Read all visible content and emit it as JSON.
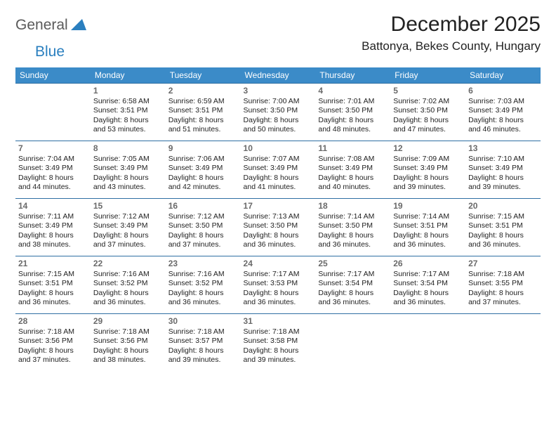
{
  "logo": {
    "general": "General",
    "blue": "Blue"
  },
  "title": "December 2025",
  "location": "Battonya, Bekes County, Hungary",
  "colors": {
    "header_bg": "#3b8bc8",
    "header_text": "#ffffff",
    "rule": "#2f6fa3",
    "logo_gray": "#5a5a5a",
    "logo_blue": "#2a7fbf",
    "daynum": "#6a6a6a",
    "text": "#222222",
    "background": "#ffffff"
  },
  "day_headers": [
    "Sunday",
    "Monday",
    "Tuesday",
    "Wednesday",
    "Thursday",
    "Friday",
    "Saturday"
  ],
  "weeks": [
    [
      null,
      {
        "n": "1",
        "sr": "6:58 AM",
        "ss": "3:51 PM",
        "dl": "8 hours and 53 minutes."
      },
      {
        "n": "2",
        "sr": "6:59 AM",
        "ss": "3:51 PM",
        "dl": "8 hours and 51 minutes."
      },
      {
        "n": "3",
        "sr": "7:00 AM",
        "ss": "3:50 PM",
        "dl": "8 hours and 50 minutes."
      },
      {
        "n": "4",
        "sr": "7:01 AM",
        "ss": "3:50 PM",
        "dl": "8 hours and 48 minutes."
      },
      {
        "n": "5",
        "sr": "7:02 AM",
        "ss": "3:50 PM",
        "dl": "8 hours and 47 minutes."
      },
      {
        "n": "6",
        "sr": "7:03 AM",
        "ss": "3:49 PM",
        "dl": "8 hours and 46 minutes."
      }
    ],
    [
      {
        "n": "7",
        "sr": "7:04 AM",
        "ss": "3:49 PM",
        "dl": "8 hours and 44 minutes."
      },
      {
        "n": "8",
        "sr": "7:05 AM",
        "ss": "3:49 PM",
        "dl": "8 hours and 43 minutes."
      },
      {
        "n": "9",
        "sr": "7:06 AM",
        "ss": "3:49 PM",
        "dl": "8 hours and 42 minutes."
      },
      {
        "n": "10",
        "sr": "7:07 AM",
        "ss": "3:49 PM",
        "dl": "8 hours and 41 minutes."
      },
      {
        "n": "11",
        "sr": "7:08 AM",
        "ss": "3:49 PM",
        "dl": "8 hours and 40 minutes."
      },
      {
        "n": "12",
        "sr": "7:09 AM",
        "ss": "3:49 PM",
        "dl": "8 hours and 39 minutes."
      },
      {
        "n": "13",
        "sr": "7:10 AM",
        "ss": "3:49 PM",
        "dl": "8 hours and 39 minutes."
      }
    ],
    [
      {
        "n": "14",
        "sr": "7:11 AM",
        "ss": "3:49 PM",
        "dl": "8 hours and 38 minutes."
      },
      {
        "n": "15",
        "sr": "7:12 AM",
        "ss": "3:49 PM",
        "dl": "8 hours and 37 minutes."
      },
      {
        "n": "16",
        "sr": "7:12 AM",
        "ss": "3:50 PM",
        "dl": "8 hours and 37 minutes."
      },
      {
        "n": "17",
        "sr": "7:13 AM",
        "ss": "3:50 PM",
        "dl": "8 hours and 36 minutes."
      },
      {
        "n": "18",
        "sr": "7:14 AM",
        "ss": "3:50 PM",
        "dl": "8 hours and 36 minutes."
      },
      {
        "n": "19",
        "sr": "7:14 AM",
        "ss": "3:51 PM",
        "dl": "8 hours and 36 minutes."
      },
      {
        "n": "20",
        "sr": "7:15 AM",
        "ss": "3:51 PM",
        "dl": "8 hours and 36 minutes."
      }
    ],
    [
      {
        "n": "21",
        "sr": "7:15 AM",
        "ss": "3:51 PM",
        "dl": "8 hours and 36 minutes."
      },
      {
        "n": "22",
        "sr": "7:16 AM",
        "ss": "3:52 PM",
        "dl": "8 hours and 36 minutes."
      },
      {
        "n": "23",
        "sr": "7:16 AM",
        "ss": "3:52 PM",
        "dl": "8 hours and 36 minutes."
      },
      {
        "n": "24",
        "sr": "7:17 AM",
        "ss": "3:53 PM",
        "dl": "8 hours and 36 minutes."
      },
      {
        "n": "25",
        "sr": "7:17 AM",
        "ss": "3:54 PM",
        "dl": "8 hours and 36 minutes."
      },
      {
        "n": "26",
        "sr": "7:17 AM",
        "ss": "3:54 PM",
        "dl": "8 hours and 36 minutes."
      },
      {
        "n": "27",
        "sr": "7:18 AM",
        "ss": "3:55 PM",
        "dl": "8 hours and 37 minutes."
      }
    ],
    [
      {
        "n": "28",
        "sr": "7:18 AM",
        "ss": "3:56 PM",
        "dl": "8 hours and 37 minutes."
      },
      {
        "n": "29",
        "sr": "7:18 AM",
        "ss": "3:56 PM",
        "dl": "8 hours and 38 minutes."
      },
      {
        "n": "30",
        "sr": "7:18 AM",
        "ss": "3:57 PM",
        "dl": "8 hours and 39 minutes."
      },
      {
        "n": "31",
        "sr": "7:18 AM",
        "ss": "3:58 PM",
        "dl": "8 hours and 39 minutes."
      },
      null,
      null,
      null
    ]
  ],
  "labels": {
    "sunrise": "Sunrise: ",
    "sunset": "Sunset: ",
    "daylight": "Daylight: "
  }
}
